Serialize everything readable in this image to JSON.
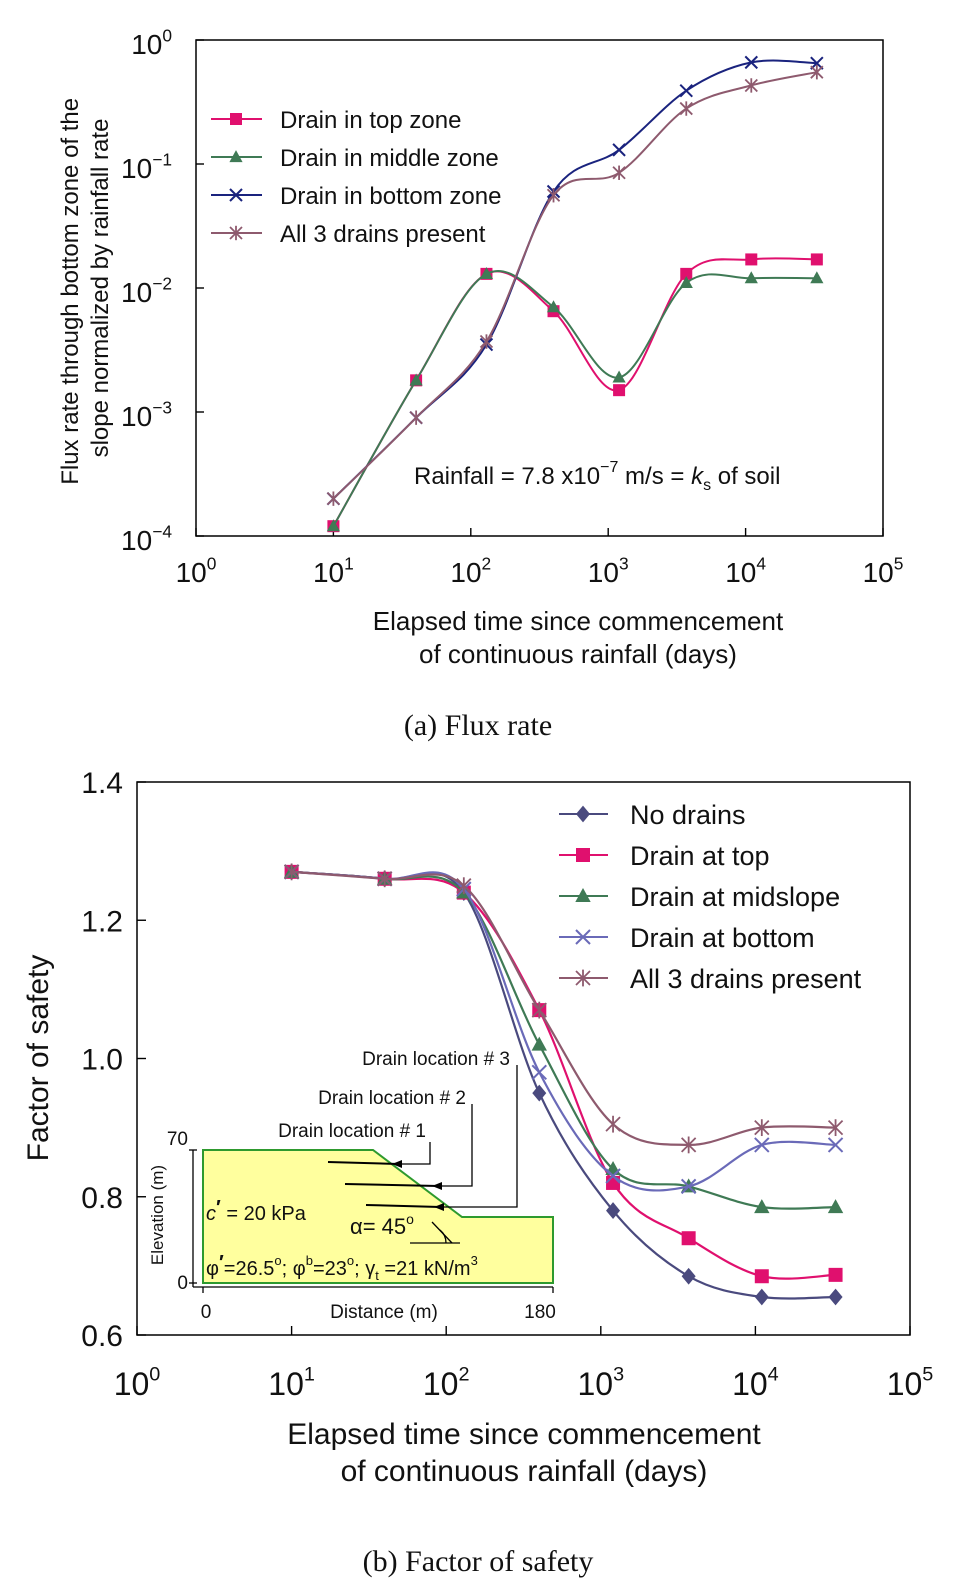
{
  "chart_data": [
    {
      "type": "line",
      "caption": "(a) Flux rate",
      "xlabel": [
        "Elapsed time since commencement",
        "of continuous rainfall (days)"
      ],
      "ylabel": [
        "Flux rate through bottom zone of the",
        "slope normalized by rainfall rate"
      ],
      "xscale": "log",
      "yscale": "log",
      "xlim": [
        1,
        100000
      ],
      "ylim": [
        0.0001,
        1
      ],
      "x_ticks": [
        1,
        10,
        100,
        1000,
        10000,
        100000
      ],
      "x_tick_labels": [
        [
          "10",
          "0"
        ],
        [
          "10",
          "1"
        ],
        [
          "10",
          "2"
        ],
        [
          "10",
          "3"
        ],
        [
          "10",
          "4"
        ],
        [
          "10",
          "5"
        ]
      ],
      "y_ticks": [
        0.0001,
        0.001,
        0.01,
        0.1,
        1
      ],
      "y_tick_labels": [
        [
          "10",
          "−4"
        ],
        [
          "10",
          "−3"
        ],
        [
          "10",
          "−2"
        ],
        [
          "10",
          "−1"
        ],
        [
          "10",
          "0"
        ]
      ],
      "grid": false,
      "legend": "top-left",
      "annotation": {
        "pre": "Rainfall = 7.8 x10",
        "exp": "−7",
        "mid": " m/s = ",
        "k": "k",
        "ksub": "s",
        "post": " of soil"
      },
      "series": [
        {
          "name": "Drain in top zone",
          "marker": "square",
          "color": "#e0106e",
          "x": [
            10,
            40,
            130,
            400,
            1200,
            3700,
            11000,
            33000
          ],
          "y": [
            0.00012,
            0.0018,
            0.013,
            0.0065,
            0.0015,
            0.013,
            0.017,
            0.017
          ]
        },
        {
          "name": "Drain in middle zone",
          "marker": "triangle",
          "color": "#3f7a55",
          "x": [
            10,
            40,
            130,
            400,
            1200,
            3700,
            11000,
            33000
          ],
          "y": [
            0.00012,
            0.0018,
            0.013,
            0.007,
            0.0019,
            0.011,
            0.012,
            0.012
          ]
        },
        {
          "name": "Drain in bottom zone",
          "marker": "x",
          "color": "#1a237e",
          "x": [
            10,
            40,
            130,
            400,
            1200,
            3700,
            11000,
            33000
          ],
          "y": [
            0.0002,
            0.0009,
            0.0035,
            0.06,
            0.13,
            0.39,
            0.66,
            0.65
          ]
        },
        {
          "name": "All 3 drains present",
          "marker": "asterisk",
          "color": "#8e5a6e",
          "x": [
            10,
            40,
            130,
            400,
            1200,
            3700,
            11000,
            33000
          ],
          "y": [
            0.0002,
            0.0009,
            0.0037,
            0.056,
            0.085,
            0.28,
            0.43,
            0.55
          ]
        }
      ]
    },
    {
      "type": "line",
      "caption": "(b) Factor of safety",
      "xlabel": [
        "Elapsed time since commencement",
        "of continuous rainfall (days)"
      ],
      "ylabel": "Factor of safety",
      "xscale": "log",
      "xlim": [
        1,
        100000
      ],
      "ylim": [
        0.6,
        1.4
      ],
      "x_ticks": [
        1,
        10,
        100,
        1000,
        10000,
        100000
      ],
      "x_tick_labels": [
        [
          "10",
          "0"
        ],
        [
          "10",
          "1"
        ],
        [
          "10",
          "2"
        ],
        [
          "10",
          "3"
        ],
        [
          "10",
          "4"
        ],
        [
          "10",
          "5"
        ]
      ],
      "y_ticks": [
        0.6,
        0.8,
        1.0,
        1.2,
        1.4
      ],
      "y_tick_labels": [
        "0.6",
        "0.8",
        "1.0",
        "1.2",
        "1.4"
      ],
      "grid": false,
      "legend": "top-right",
      "series": [
        {
          "name": "No drains",
          "marker": "diamond",
          "color": "#4a4a7e",
          "x": [
            10,
            40,
            130,
            400,
            1200,
            3700,
            11000,
            33000
          ],
          "y": [
            1.27,
            1.26,
            1.24,
            0.95,
            0.78,
            0.685,
            0.655,
            0.655
          ]
        },
        {
          "name": "Drain at top",
          "marker": "square",
          "color": "#e0106e",
          "x": [
            10,
            40,
            130,
            400,
            1200,
            3700,
            11000,
            33000
          ],
          "y": [
            1.27,
            1.26,
            1.24,
            1.07,
            0.82,
            0.74,
            0.685,
            0.687
          ]
        },
        {
          "name": "Drain at midslope",
          "marker": "triangle",
          "color": "#3f7a55",
          "x": [
            10,
            40,
            130,
            400,
            1200,
            3700,
            11000,
            33000
          ],
          "y": [
            1.27,
            1.26,
            1.24,
            1.02,
            0.84,
            0.815,
            0.785,
            0.785
          ]
        },
        {
          "name": "Drain at bottom",
          "marker": "x",
          "color": "#6a6ab8",
          "x": [
            10,
            40,
            130,
            400,
            1200,
            3700,
            11000,
            33000
          ],
          "y": [
            1.27,
            1.26,
            1.245,
            0.98,
            0.83,
            0.815,
            0.875,
            0.875
          ]
        },
        {
          "name": "All 3 drains present",
          "marker": "asterisk",
          "color": "#8e5a6e",
          "x": [
            10,
            40,
            130,
            400,
            1200,
            3700,
            11000,
            33000
          ],
          "y": [
            1.27,
            1.26,
            1.25,
            1.07,
            0.905,
            0.875,
            0.9,
            0.9
          ]
        }
      ],
      "inset": {
        "drain_labels": [
          "Drain location # 1",
          "Drain location # 2",
          "Drain location # 3"
        ],
        "cohesion": {
          "c": "c",
          "prime": "′",
          "rest": " = 20 kPa"
        },
        "angle": "α= 45",
        "angle_deg": "o",
        "params": {
          "phi1": "φ",
          "prime": "′",
          "v1": "=26.5",
          "deg": "o",
          "sep1": "; φ",
          "b": "b",
          "v2": "=23",
          "sep2": "; γ",
          "t": "t",
          "v3": " =21 kN/m",
          "cube": "3"
        },
        "ylabel": "Elevation (m)",
        "xlabel": "Distance (m)",
        "y_tick_labels": [
          "70",
          "0"
        ],
        "x_tick_labels": [
          "0",
          "180"
        ],
        "fill_color": "#ffff9e",
        "outline_color": "#2e9a2e"
      }
    }
  ]
}
